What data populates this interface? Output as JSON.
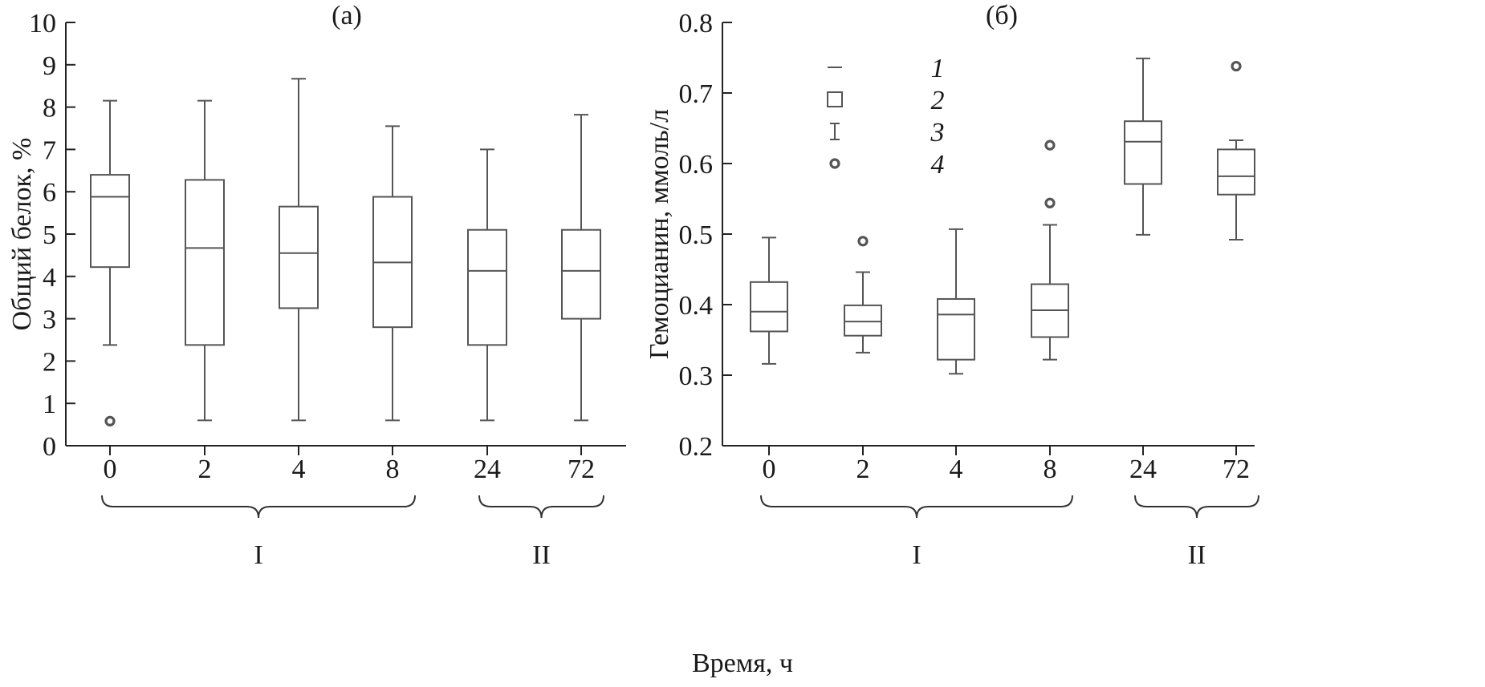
{
  "chart_data": [
    {
      "type": "box",
      "title": "(а)",
      "xlabel": "Время, ч",
      "ylabel": "Общий белок, %",
      "ylim": [
        0,
        10
      ],
      "yticks": [
        "0",
        "1",
        "2",
        "3",
        "4",
        "5",
        "6",
        "7",
        "8",
        "9",
        "10"
      ],
      "categories": [
        "0",
        "2",
        "4",
        "8",
        "24",
        "72"
      ],
      "groups": [
        {
          "label": "I",
          "categories": [
            "0",
            "2",
            "4",
            "8"
          ]
        },
        {
          "label": "II",
          "categories": [
            "24",
            "72"
          ]
        }
      ],
      "boxes": [
        {
          "category": "0",
          "whisker_low": 2.38,
          "q1": 4.22,
          "median": 5.88,
          "q3": 6.4,
          "whisker_high": 8.15,
          "outliers": [
            0.58
          ]
        },
        {
          "category": "2",
          "whisker_low": 0.6,
          "q1": 2.38,
          "median": 4.67,
          "q3": 6.28,
          "whisker_high": 8.15,
          "outliers": []
        },
        {
          "category": "4",
          "whisker_low": 0.6,
          "q1": 3.25,
          "median": 4.55,
          "q3": 5.65,
          "whisker_high": 8.67,
          "outliers": []
        },
        {
          "category": "8",
          "whisker_low": 0.6,
          "q1": 2.8,
          "median": 4.33,
          "q3": 5.88,
          "whisker_high": 7.55,
          "outliers": []
        },
        {
          "category": "24",
          "whisker_low": 0.6,
          "q1": 2.38,
          "median": 4.13,
          "q3": 5.1,
          "whisker_high": 7.0,
          "outliers": []
        },
        {
          "category": "72",
          "whisker_low": 0.6,
          "q1": 3.0,
          "median": 4.13,
          "q3": 5.1,
          "whisker_high": 7.82,
          "outliers": []
        }
      ]
    },
    {
      "type": "box",
      "title": "(б)",
      "xlabel": "Время, ч",
      "ylabel": "Гемоцианин, ммоль/л",
      "ylim": [
        0.2,
        0.8
      ],
      "yticks": [
        "0.2",
        "0.3",
        "0.4",
        "0.5",
        "0.6",
        "0.7",
        "0.8"
      ],
      "categories": [
        "0",
        "2",
        "4",
        "8",
        "24",
        "72"
      ],
      "groups": [
        {
          "label": "I",
          "categories": [
            "0",
            "2",
            "4",
            "8"
          ]
        },
        {
          "label": "II",
          "categories": [
            "24",
            "72"
          ]
        }
      ],
      "legend": {
        "position": "top-left",
        "items": [
          {
            "num": "1",
            "symbol": "median"
          },
          {
            "num": "2",
            "symbol": "box"
          },
          {
            "num": "3",
            "symbol": "whisker"
          },
          {
            "num": "4",
            "symbol": "outlier"
          }
        ]
      },
      "boxes": [
        {
          "category": "0",
          "whisker_low": 0.316,
          "q1": 0.362,
          "median": 0.39,
          "q3": 0.432,
          "whisker_high": 0.495,
          "outliers": []
        },
        {
          "category": "2",
          "whisker_low": 0.332,
          "q1": 0.356,
          "median": 0.376,
          "q3": 0.399,
          "whisker_high": 0.446,
          "outliers": [
            0.49
          ]
        },
        {
          "category": "4",
          "whisker_low": 0.302,
          "q1": 0.322,
          "median": 0.386,
          "q3": 0.408,
          "whisker_high": 0.507,
          "outliers": []
        },
        {
          "category": "8",
          "whisker_low": 0.322,
          "q1": 0.354,
          "median": 0.392,
          "q3": 0.429,
          "whisker_high": 0.513,
          "outliers": [
            0.544,
            0.626
          ]
        },
        {
          "category": "24",
          "whisker_low": 0.499,
          "q1": 0.571,
          "median": 0.631,
          "q3": 0.66,
          "whisker_high": 0.749,
          "outliers": []
        },
        {
          "category": "72",
          "whisker_low": 0.492,
          "q1": 0.556,
          "median": 0.582,
          "q3": 0.62,
          "whisker_high": 0.633,
          "outliers": [
            0.738
          ]
        }
      ]
    }
  ]
}
